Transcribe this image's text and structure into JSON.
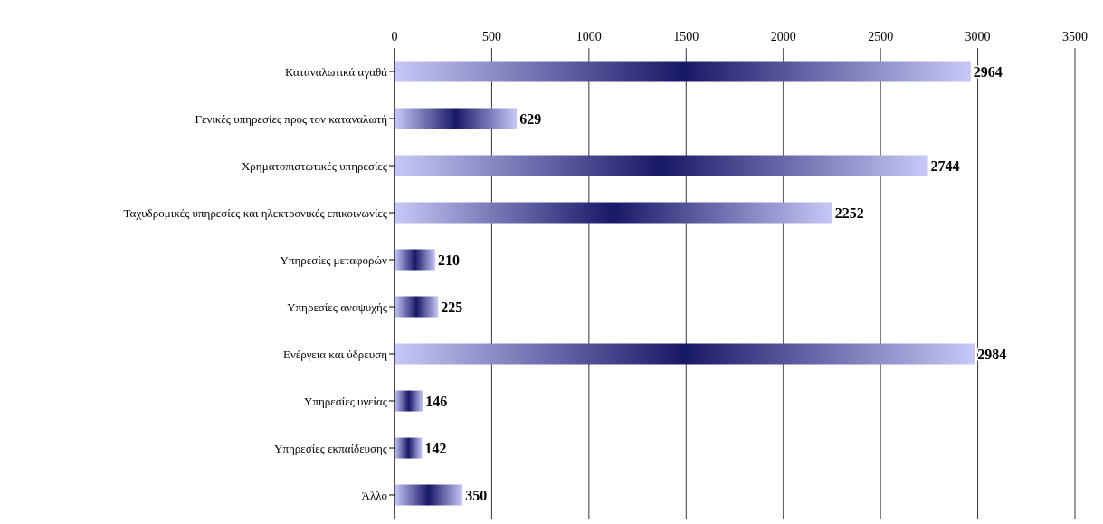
{
  "chart_data": {
    "type": "bar",
    "orientation": "horizontal",
    "categories": [
      "Καταναλωτικά αγαθά",
      "Γενικές υπηρεσίες προς τον καταναλωτή",
      "Χρηματοπιστωτικές υπηρεσίες",
      "Ταχυδρομικές υπηρεσίες και ηλεκτρονικές επικοινωνίες",
      "Υπηρεσίες μεταφορών",
      "Υπηρεσίες αναψυχής",
      "Ενέργεια και ύδρευση",
      "Υπηρεσίες υγείας",
      "Υπηρεσίες εκπαίδευσης",
      "Άλλο"
    ],
    "values": [
      2964,
      629,
      2744,
      2252,
      210,
      225,
      2984,
      146,
      142,
      350
    ],
    "color": "#c8c8f8",
    "xlim": [
      0,
      3500
    ],
    "xticks": [
      0,
      500,
      1000,
      1500,
      2000,
      2500,
      3000,
      3500
    ],
    "grid": "x",
    "data_labels": true
  }
}
